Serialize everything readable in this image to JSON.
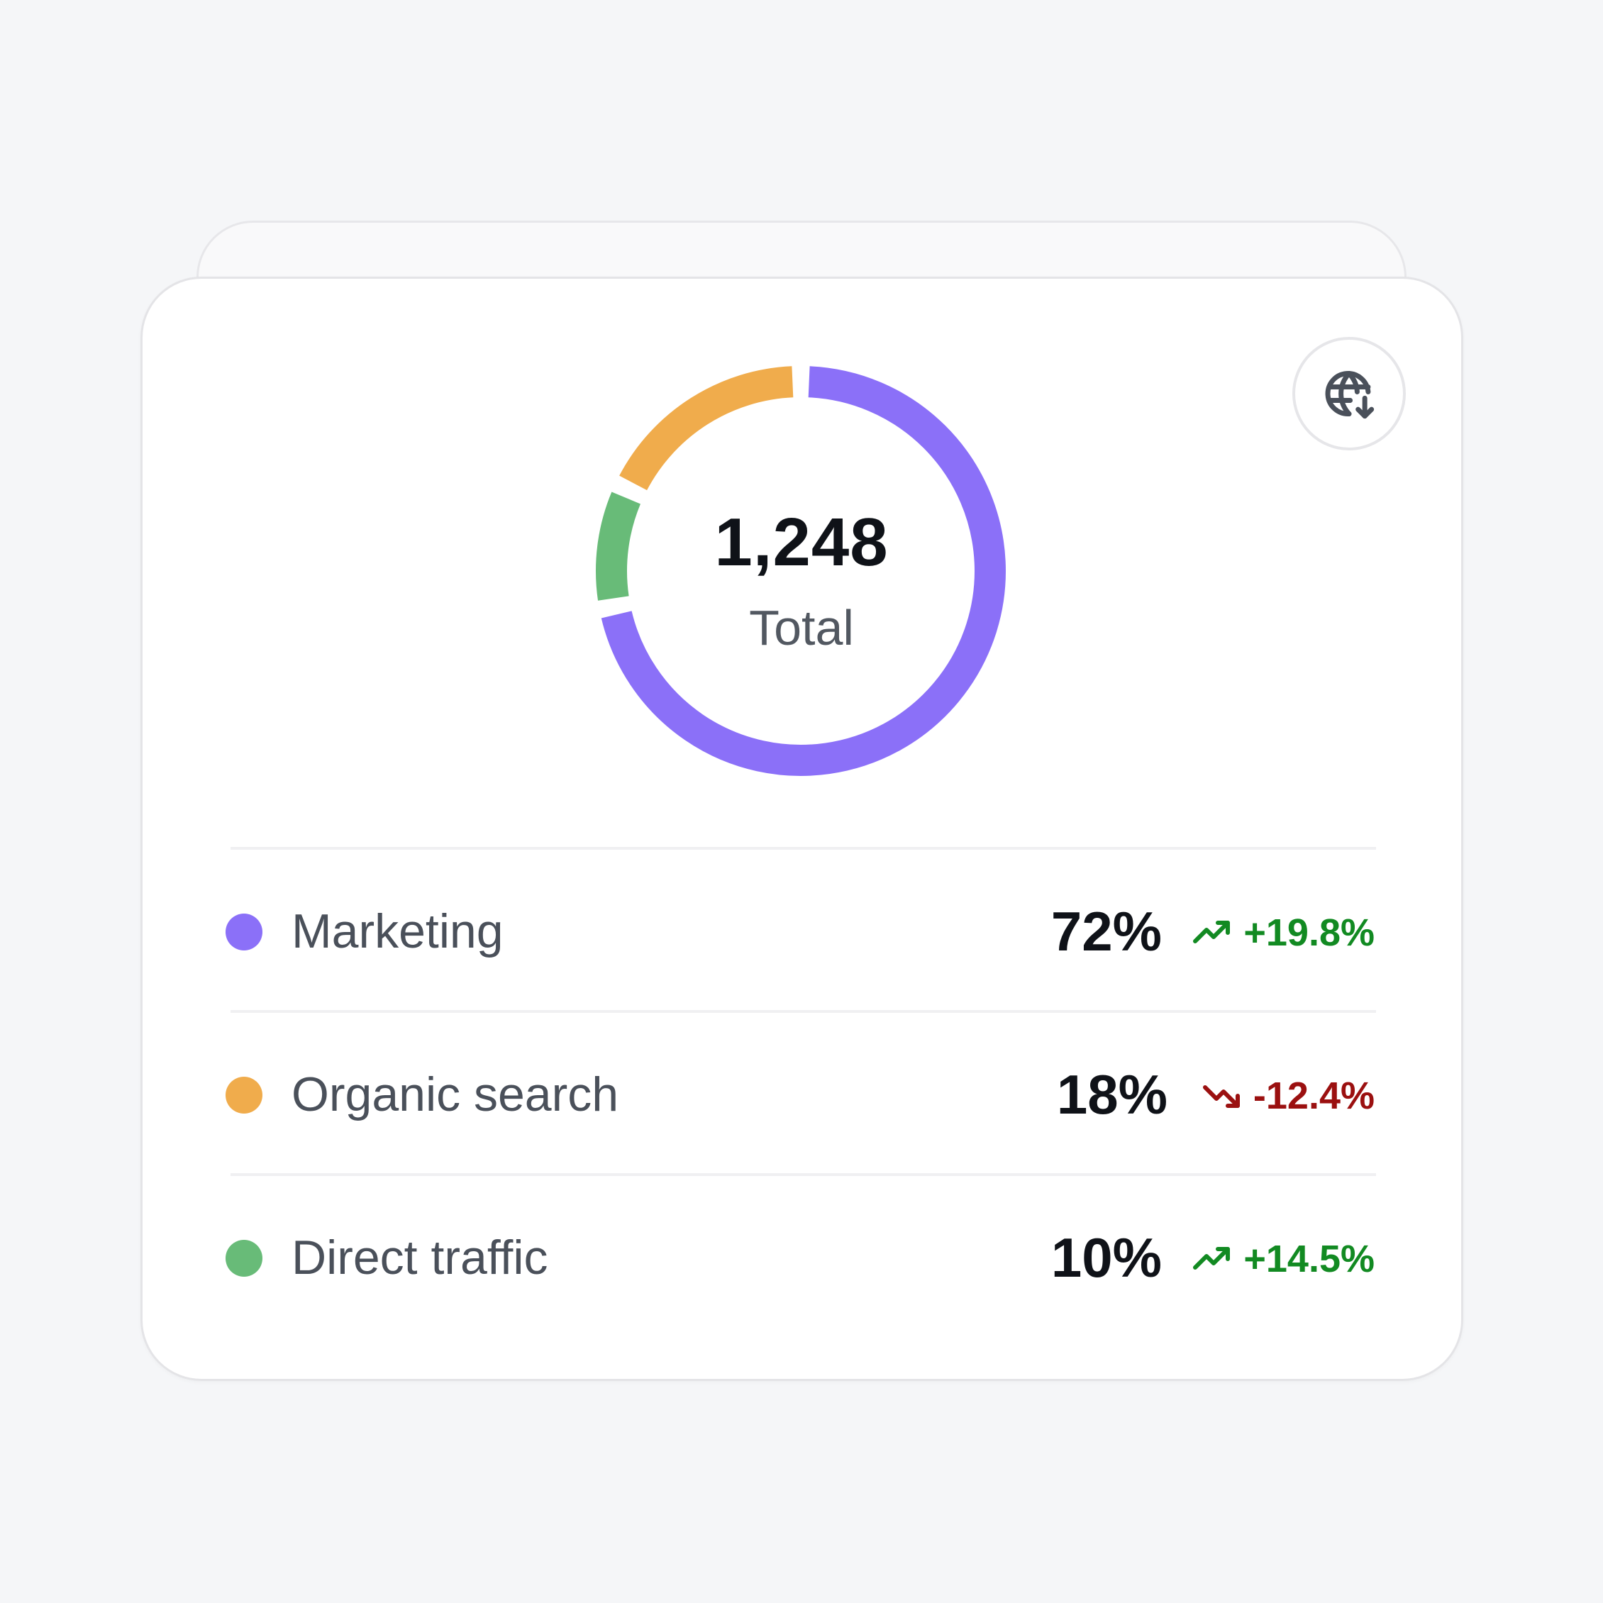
{
  "header": {
    "export_icon": "globe-download-icon"
  },
  "summary": {
    "total_value": "1,248",
    "total_label": "Total"
  },
  "colors": {
    "marketing": "#8b70f8",
    "organic": "#f0ac4c",
    "direct": "#68bb78",
    "trend_up": "#128a22",
    "trend_down": "#9b1010"
  },
  "chart_data": {
    "type": "pie",
    "style": "donut",
    "categories": [
      "Marketing",
      "Organic search",
      "Direct traffic"
    ],
    "values": [
      72,
      18,
      10
    ],
    "unit": "%",
    "center_value": "1,248",
    "center_label": "Total"
  },
  "legend": [
    {
      "label": "Marketing",
      "percent": "72%",
      "change": "+19.8%",
      "direction": "up",
      "icon": "trend-up-icon"
    },
    {
      "label": "Organic search",
      "percent": "18%",
      "change": "-12.4%",
      "direction": "down",
      "icon": "trend-down-icon"
    },
    {
      "label": "Direct traffic",
      "percent": "10%",
      "change": "+14.5%",
      "direction": "up",
      "icon": "trend-up-icon"
    }
  ]
}
